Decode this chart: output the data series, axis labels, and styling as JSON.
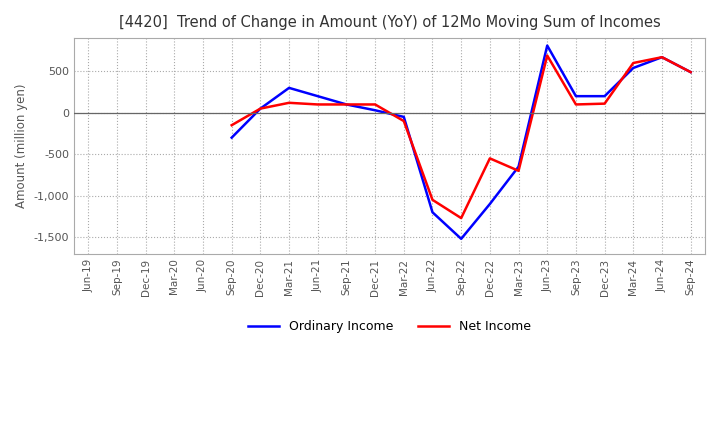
{
  "title": "[4420]  Trend of Change in Amount (YoY) of 12Mo Moving Sum of Incomes",
  "ylabel": "Amount (million yen)",
  "ylim": [
    -1700,
    900
  ],
  "yticks": [
    -1500,
    -1000,
    -500,
    0,
    500
  ],
  "legend_labels": [
    "Ordinary Income",
    "Net Income"
  ],
  "line_colors": [
    "#0000ff",
    "#ff0000"
  ],
  "x_labels": [
    "Jun-19",
    "Sep-19",
    "Dec-19",
    "Mar-20",
    "Jun-20",
    "Sep-20",
    "Dec-20",
    "Mar-21",
    "Jun-21",
    "Sep-21",
    "Dec-21",
    "Mar-22",
    "Jun-22",
    "Sep-22",
    "Dec-22",
    "Mar-23",
    "Jun-23",
    "Sep-23",
    "Dec-23",
    "Mar-24",
    "Jun-24",
    "Sep-24"
  ],
  "ordinary_income": [
    null,
    null,
    null,
    null,
    null,
    -300,
    50,
    300,
    200,
    100,
    30,
    -50,
    -1200,
    -1520,
    -1100,
    -650,
    810,
    200,
    200,
    540,
    670,
    490
  ],
  "net_income": [
    null,
    null,
    null,
    null,
    null,
    -150,
    50,
    120,
    100,
    100,
    100,
    -100,
    -1050,
    -1270,
    -550,
    -700,
    690,
    100,
    110,
    600,
    670,
    490
  ]
}
